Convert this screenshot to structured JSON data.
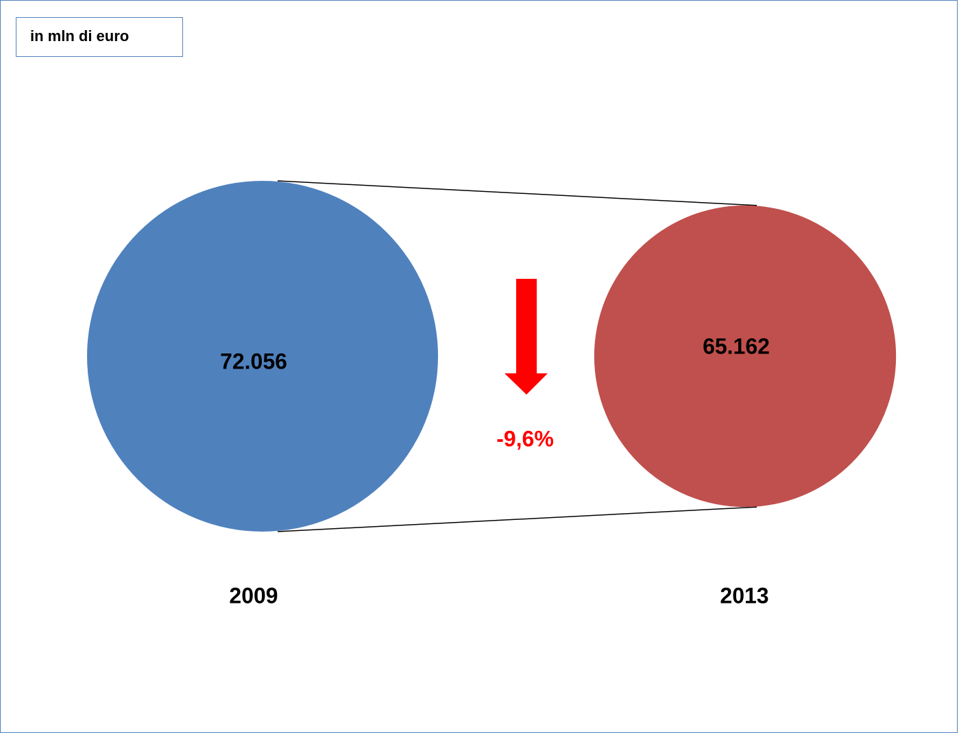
{
  "unit_label": "in mln di euro",
  "change_label": "-9,6%",
  "colors": {
    "series_2009": "#4f81bd",
    "series_2013": "#c0504d",
    "change": "#ff0000",
    "frame": "#4f81bd",
    "connector": "#000000"
  },
  "icons": {
    "change_indicator": "arrow-down-icon"
  },
  "chart_data": {
    "type": "bubble-comparison",
    "categories": [
      "2009",
      "2013"
    ],
    "values": [
      72056,
      65162
    ],
    "value_labels": [
      "72.056",
      "65.162"
    ],
    "change_percent": -9.6,
    "change_label": "-9,6%",
    "unit": "in mln di euro",
    "title": "",
    "xlabel": "",
    "ylabel": ""
  }
}
